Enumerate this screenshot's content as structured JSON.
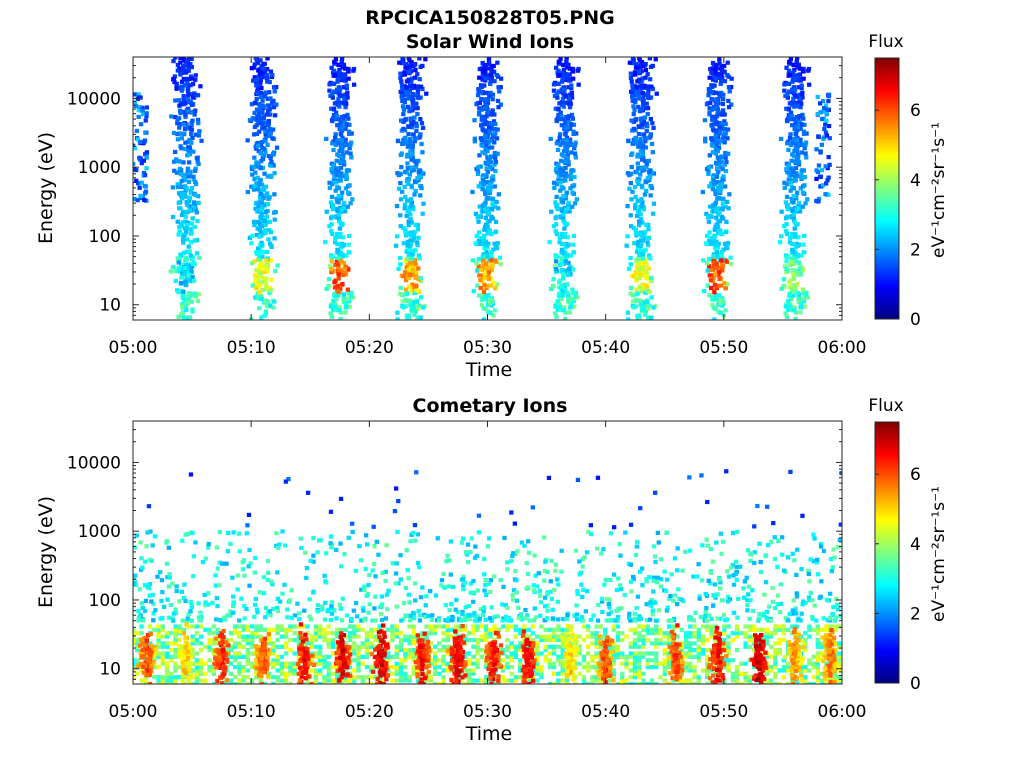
{
  "figure": {
    "filename_title": "RPCICA150828T05.PNG"
  },
  "colormap": {
    "name": "jet",
    "stops": [
      "#00007f",
      "#0000ff",
      "#007fff",
      "#00ffff",
      "#7fff7f",
      "#ffff00",
      "#ff7f00",
      "#ff0000",
      "#7f0000"
    ]
  },
  "chart_data": [
    {
      "type": "heatmap",
      "title": "Solar Wind Ions",
      "xlabel": "Time",
      "ylabel": "Energy (eV)",
      "x_ticks": [
        "05:00",
        "05:10",
        "05:20",
        "05:30",
        "05:40",
        "05:50",
        "06:00"
      ],
      "x_range_minutes": [
        0,
        60
      ],
      "y_scale": "log",
      "y_ticks": [
        "10",
        "100",
        "1000",
        "10000"
      ],
      "y_range": [
        6,
        40000
      ],
      "colorbar": {
        "label_top": "Flux",
        "units": "eV⁻¹cm⁻²sr⁻¹s⁻¹",
        "ticks": [
          "0",
          "2",
          "4",
          "6"
        ],
        "range": [
          0,
          7.5
        ]
      },
      "bursts": [
        {
          "time_min": 4.5,
          "peak_flux": 3.2
        },
        {
          "time_min": 11.0,
          "peak_flux": 5.0
        },
        {
          "time_min": 17.5,
          "peak_flux": 6.4
        },
        {
          "time_min": 23.5,
          "peak_flux": 5.8
        },
        {
          "time_min": 30.0,
          "peak_flux": 5.9
        },
        {
          "time_min": 36.5,
          "peak_flux": 3.2
        },
        {
          "time_min": 43.0,
          "peak_flux": 5.0
        },
        {
          "time_min": 49.5,
          "peak_flux": 6.5
        },
        {
          "time_min": 56.0,
          "peak_flux": 4.2
        }
      ]
    },
    {
      "type": "heatmap",
      "title": "Cometary Ions",
      "xlabel": "Time",
      "ylabel": "Energy (eV)",
      "x_ticks": [
        "05:00",
        "05:10",
        "05:20",
        "05:30",
        "05:40",
        "05:50",
        "06:00"
      ],
      "x_range_minutes": [
        0,
        60
      ],
      "y_scale": "log",
      "y_ticks": [
        "10",
        "100",
        "1000",
        "10000"
      ],
      "y_range": [
        6,
        40000
      ],
      "colorbar": {
        "label_top": "Flux",
        "units": "eV⁻¹cm⁻²sr⁻¹s⁻¹",
        "ticks": [
          "0",
          "2",
          "4",
          "6"
        ],
        "range": [
          0,
          7.5
        ]
      },
      "low_energy_band_eV": [
        8,
        40
      ],
      "hot_spots": [
        {
          "time_min": 1.2,
          "peak_flux": 6.5
        },
        {
          "time_min": 4.5,
          "peak_flux": 5.5
        },
        {
          "time_min": 7.5,
          "peak_flux": 6.8
        },
        {
          "time_min": 11.0,
          "peak_flux": 6.4
        },
        {
          "time_min": 14.5,
          "peak_flux": 7.0
        },
        {
          "time_min": 17.8,
          "peak_flux": 7.2
        },
        {
          "time_min": 21.0,
          "peak_flux": 7.3
        },
        {
          "time_min": 24.5,
          "peak_flux": 7.0
        },
        {
          "time_min": 27.5,
          "peak_flux": 7.2
        },
        {
          "time_min": 30.5,
          "peak_flux": 7.0
        },
        {
          "time_min": 33.5,
          "peak_flux": 7.1
        },
        {
          "time_min": 37.0,
          "peak_flux": 5.5
        },
        {
          "time_min": 40.0,
          "peak_flux": 6.5
        },
        {
          "time_min": 46.0,
          "peak_flux": 6.6
        },
        {
          "time_min": 49.5,
          "peak_flux": 7.0
        },
        {
          "time_min": 53.0,
          "peak_flux": 7.4
        },
        {
          "time_min": 56.0,
          "peak_flux": 6.0
        },
        {
          "time_min": 59.0,
          "peak_flux": 6.2
        }
      ]
    }
  ]
}
